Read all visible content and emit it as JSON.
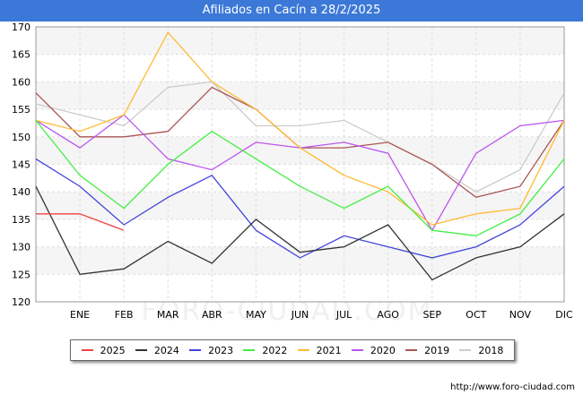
{
  "chart_data": {
    "type": "line",
    "title": "Afiliados en Cacín a 28/2/2025",
    "categories": [
      "",
      "ENE",
      "FEB",
      "MAR",
      "ABR",
      "MAY",
      "JUN",
      "JUL",
      "AGO",
      "SEP",
      "OCT",
      "NOV",
      "DIC"
    ],
    "ylim": [
      120,
      170
    ],
    "yticks": [
      120,
      125,
      130,
      135,
      140,
      145,
      150,
      155,
      160,
      165,
      170
    ],
    "grid": true,
    "legend_position": "bottom",
    "series": [
      {
        "name": "2025",
        "color": "#ee4444",
        "values": [
          136,
          136,
          133,
          null,
          null,
          null,
          null,
          null,
          null,
          null,
          null,
          null,
          null
        ]
      },
      {
        "name": "2024",
        "color": "#333333",
        "values": [
          141,
          125,
          126,
          131,
          127,
          135,
          129,
          130,
          134,
          124,
          128,
          130,
          136
        ]
      },
      {
        "name": "2023",
        "color": "#4444dd",
        "values": [
          146,
          141,
          134,
          139,
          143,
          133,
          128,
          132,
          130,
          128,
          130,
          134,
          141
        ]
      },
      {
        "name": "2022",
        "color": "#44ee44",
        "values": [
          153,
          143,
          137,
          145,
          151,
          146,
          141,
          137,
          141,
          133,
          132,
          136,
          146
        ]
      },
      {
        "name": "2021",
        "color": "#ffbb33",
        "values": [
          153,
          151,
          154,
          169,
          160,
          155,
          148,
          143,
          140,
          134,
          136,
          137,
          153
        ]
      },
      {
        "name": "2020",
        "color": "#bb55ee",
        "values": [
          153,
          148,
          154,
          146,
          144,
          149,
          148,
          149,
          147,
          133,
          147,
          152,
          153
        ]
      },
      {
        "name": "2019",
        "color": "#aa5555",
        "values": [
          158,
          150,
          150,
          151,
          159,
          155,
          148,
          148,
          149,
          145,
          139,
          141,
          153
        ]
      },
      {
        "name": "2018",
        "color": "#cccccc",
        "values": [
          156,
          154,
          152,
          159,
          160,
          152,
          152,
          153,
          149,
          145,
          140,
          144,
          158
        ]
      }
    ]
  },
  "source": "http://www.foro-ciudad.com",
  "watermark": "FORO-CIUDAD.COM"
}
